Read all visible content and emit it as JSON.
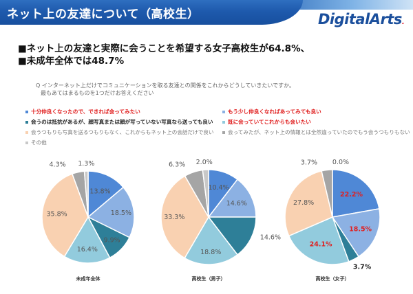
{
  "header": {
    "title": "ネット上の友達について（高校生）",
    "logo_text": "DigitalArts"
  },
  "headline": {
    "line1": "■ネット上の友達と実際に会うことを希望する女子高校生が64.8%、",
    "line2": "■未成年全体では48.7%"
  },
  "question": {
    "line1": "Q インターネット上だけでコミュニケーションを取る友達との関係をこれからどうしていきたいですか。",
    "line2": "最もあてはまるものを1つだけお答えください"
  },
  "legend": {
    "left": [
      {
        "label": "十分仲良くなったので、できれば会ってみたい",
        "color": "#4f88d6",
        "style": "red"
      },
      {
        "label": "会うのは抵抗があるが、顔写真または顔が写っていない写真なら送っても良い",
        "color": "#2e7f98",
        "style": "dark"
      },
      {
        "label": "会うつもりも写真を送るつもりもなく、これからもネット上の会話だけで良い",
        "color": "#f9d1b1",
        "style": "gray"
      },
      {
        "label": "その他",
        "color": "#c8c8c8",
        "style": "gray"
      }
    ],
    "right": [
      {
        "label": "もう少し仲良くなればあってみても良い",
        "color": "#8cb1e3",
        "style": "red"
      },
      {
        "label": "既に会っていてこれからも会いたい",
        "color": "#92cbdd",
        "style": "red"
      },
      {
        "label": "会ってみたが、ネット上の情報とは全然違っていたのでもう会うつもりもない",
        "color": "#a5a5a5",
        "style": "gray"
      }
    ]
  },
  "chart_data": [
    {
      "type": "pie",
      "title": "未成年全体",
      "categories": [
        "十分仲良くなったので、できれば会ってみたい",
        "もう少し仲良くなればあってみても良い",
        "会うのは抵抗があるが、顔写真または顔が写っていない写真なら送っても良い",
        "既に会っていてこれからも会いたい",
        "会うつもりも写真を送るつもりもなく、これからもネット上の会話だけで良い",
        "会ってみたが、ネット上の情報とは全然違っていたのでもう会うつもりもない",
        "その他"
      ],
      "values": [
        13.8,
        18.5,
        9.9,
        16.4,
        35.8,
        4.3,
        1.3
      ],
      "labels": [
        "13.8%",
        "18.5%",
        "9.9%",
        "16.4%",
        "35.8%",
        "4.3%",
        "1.3%"
      ],
      "highlight": [
        false,
        false,
        false,
        false,
        false,
        false,
        false
      ]
    },
    {
      "type": "pie",
      "title": "高校生（男子）",
      "categories": [
        "十分仲良くなったので、できれば会ってみたい",
        "もう少し仲良くなればあってみても良い",
        "会うのは抵抗があるが、顔写真または顔が写っていない写真なら送っても良い",
        "既に会っていてこれからも会いたい",
        "会うつもりも写真を送るつもりもなく、これからもネット上の会話だけで良い",
        "会ってみたが、ネット上の情報とは全然違っていたのでもう会うつもりもない",
        "その他"
      ],
      "values": [
        10.4,
        14.6,
        14.6,
        18.8,
        33.3,
        6.3,
        2.0
      ],
      "labels": [
        "10.4%",
        "14.6%",
        "14.6%",
        "18.8%",
        "33.3%",
        "6.3%",
        "2.0%"
      ],
      "highlight": [
        false,
        false,
        false,
        false,
        false,
        false,
        false
      ]
    },
    {
      "type": "pie",
      "title": "高校生（女子）",
      "categories": [
        "十分仲良くなったので、できれば会ってみたい",
        "もう少し仲良くなればあってみても良い",
        "会うのは抵抗があるが、顔写真または顔が写っていない写真なら送っても良い",
        "既に会っていてこれからも会いたい",
        "会うつもりも写真を送るつもりもなく、これからもネット上の会話だけで良い",
        "会ってみたが、ネット上の情報とは全然違っていたのでもう会うつもりもない",
        "その他"
      ],
      "values": [
        22.2,
        18.5,
        3.7,
        24.1,
        27.8,
        3.7,
        0.0
      ],
      "labels": [
        "22.2%",
        "18.5%",
        "3.7%",
        "24.1%",
        "27.8%",
        "3.7%",
        "0.0%"
      ],
      "highlight": [
        true,
        true,
        false,
        true,
        false,
        false,
        false
      ]
    }
  ],
  "slice_colors": [
    "#4f88d6",
    "#8cb1e3",
    "#2e7f98",
    "#92cbdd",
    "#f9d1b1",
    "#a5a5a5",
    "#c8c8c8"
  ]
}
